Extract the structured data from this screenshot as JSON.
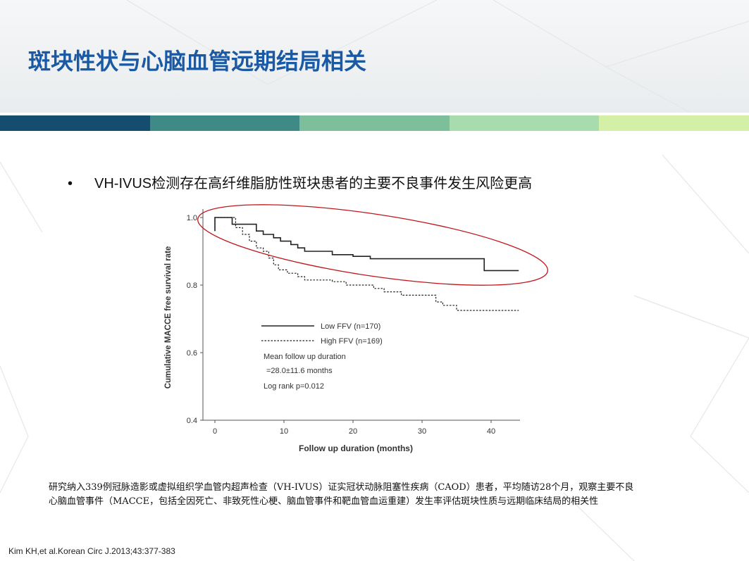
{
  "slide": {
    "title": "斑块性状与心脑血管远期结局相关",
    "bullet": "VH-IVUS检测存在高纤维脂肪性斑块患者的主要不良事件发生风险更高",
    "bullet_symbol": "•",
    "note_line1": "研究纳入339例冠脉造影或虚拟组织学血管内超声检查（VH-IVUS）证实冠状动脉阻塞性疾病（CAOD）患者，平均随访28个月，观察主要不良",
    "note_line2": "心脑血管事件（MACCE，包括全因死亡、非致死性心梗、脑血管事件和靶血管血运重建）发生率评估斑块性质与远期临床结局的相关性",
    "citation": "Kim KH,et al.Korean Circ J.2013;43:377-383",
    "stripe_colors": [
      "#154d6e",
      "#3f8a87",
      "#7dbf9b",
      "#a8dcae",
      "#d3f0a6"
    ],
    "title_color": "#1a5aa5",
    "highlight_color": "#c0161b"
  },
  "chart_data": {
    "type": "line",
    "xlabel": "Follow up duration (months)",
    "ylabel": "Cumulative MACCE free survival rate",
    "xlim": [
      -2,
      44
    ],
    "ylim": [
      0.38,
      1.02
    ],
    "xticks": [
      0,
      10,
      20,
      30,
      40
    ],
    "yticks": [
      0.4,
      0.6,
      0.8,
      1.0
    ],
    "xtick_labels": [
      "0",
      "10",
      "20",
      "30",
      "40"
    ],
    "ytick_labels": [
      "0.4",
      "0.6",
      "0.8",
      "1.0"
    ],
    "series": [
      {
        "name": "Low FFV (n=170)",
        "style": "solid",
        "points": [
          [
            0,
            0.96
          ],
          [
            0,
            1.0
          ],
          [
            2.5,
            1.0
          ],
          [
            2.5,
            0.98
          ],
          [
            6,
            0.98
          ],
          [
            6,
            0.96
          ],
          [
            7,
            0.96
          ],
          [
            7,
            0.95
          ],
          [
            8.5,
            0.95
          ],
          [
            8.5,
            0.94
          ],
          [
            9.5,
            0.94
          ],
          [
            9.5,
            0.93
          ],
          [
            11,
            0.93
          ],
          [
            11,
            0.92
          ],
          [
            12,
            0.92
          ],
          [
            12,
            0.91
          ],
          [
            13,
            0.91
          ],
          [
            13,
            0.9
          ],
          [
            17,
            0.9
          ],
          [
            17,
            0.89
          ],
          [
            20,
            0.89
          ],
          [
            20,
            0.885
          ],
          [
            22.5,
            0.885
          ],
          [
            22.5,
            0.878
          ],
          [
            39,
            0.878
          ],
          [
            39,
            0.843
          ],
          [
            44,
            0.843
          ]
        ]
      },
      {
        "name": "High FFV (n=169)",
        "style": "dashed",
        "points": [
          [
            0,
            0.96
          ],
          [
            0,
            1.0
          ],
          [
            3,
            1.0
          ],
          [
            3,
            0.97
          ],
          [
            4,
            0.97
          ],
          [
            4,
            0.95
          ],
          [
            5,
            0.95
          ],
          [
            5,
            0.93
          ],
          [
            6,
            0.93
          ],
          [
            6,
            0.91
          ],
          [
            7,
            0.91
          ],
          [
            7,
            0.9
          ],
          [
            7.8,
            0.9
          ],
          [
            7.8,
            0.88
          ],
          [
            8.5,
            0.88
          ],
          [
            8.5,
            0.86
          ],
          [
            9.2,
            0.86
          ],
          [
            9.2,
            0.845
          ],
          [
            10.5,
            0.845
          ],
          [
            10.5,
            0.835
          ],
          [
            12,
            0.835
          ],
          [
            12,
            0.825
          ],
          [
            13,
            0.825
          ],
          [
            13,
            0.815
          ],
          [
            17,
            0.815
          ],
          [
            17,
            0.81
          ],
          [
            19,
            0.81
          ],
          [
            19,
            0.8
          ],
          [
            23,
            0.8
          ],
          [
            23,
            0.79
          ],
          [
            24.5,
            0.79
          ],
          [
            24.5,
            0.78
          ],
          [
            27,
            0.78
          ],
          [
            27,
            0.77
          ],
          [
            32,
            0.77
          ],
          [
            32,
            0.75
          ],
          [
            33,
            0.75
          ],
          [
            33,
            0.74
          ],
          [
            35,
            0.74
          ],
          [
            35,
            0.725
          ],
          [
            44,
            0.725
          ]
        ]
      }
    ],
    "legend_position": "center-left",
    "annotations": [
      "Mean follow up duration",
      "=28.0±11.6 months",
      "Log rank p=0.012"
    ]
  }
}
